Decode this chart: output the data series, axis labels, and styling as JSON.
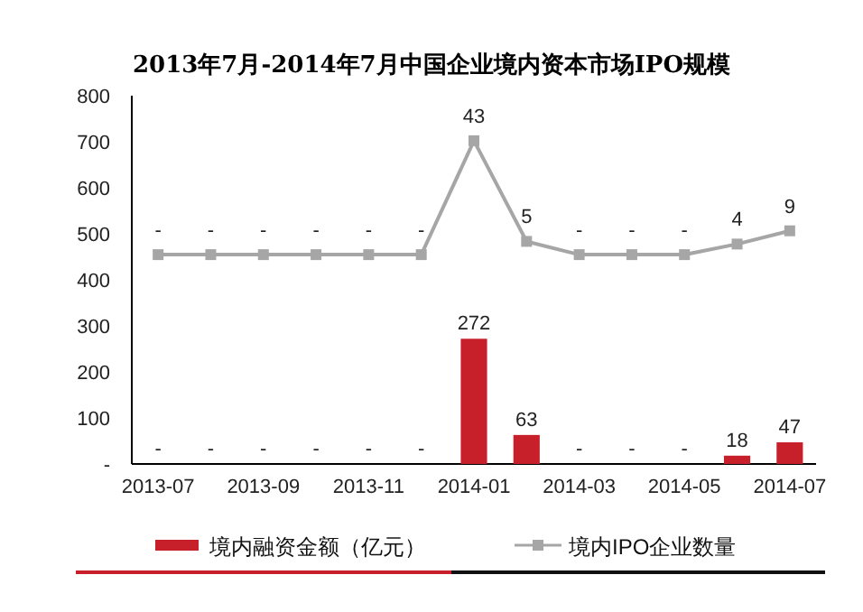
{
  "chart_data": {
    "type": "bar",
    "title": "2013年7月-2014年7月中国企业境内资本市场IPO规模",
    "categories": [
      "2013-07",
      null,
      "2013-09",
      null,
      "2013-11",
      null,
      "2014-01",
      null,
      "2014-03",
      null,
      "2014-05",
      null,
      "2014-07"
    ],
    "series": [
      {
        "name": "境内融资金额（亿元）",
        "color": "#c8202a",
        "values": [
          0,
          0,
          0,
          0,
          0,
          0,
          272,
          63,
          0,
          0,
          0,
          18,
          47
        ],
        "value_labels": [
          "-",
          "-",
          "-",
          "-",
          "-",
          "-",
          "272",
          "63",
          "-",
          "-",
          "-",
          "18",
          "47"
        ]
      },
      {
        "name": "境内IPO企业数量",
        "type": "line",
        "axis": "y2",
        "color": "#a6a6a6",
        "marker": "square",
        "values": [
          0,
          0,
          0,
          0,
          0,
          0,
          43,
          5,
          0,
          0,
          0,
          4,
          9
        ],
        "value_labels": [
          "-",
          "-",
          "-",
          "-",
          "-",
          "-",
          "43",
          "5",
          "-",
          "-",
          "-",
          "4",
          "9"
        ]
      }
    ],
    "ylim": [
      0,
      800
    ],
    "yticks": [
      {
        "value": 0,
        "label": "-"
      },
      100,
      200,
      300,
      400,
      500,
      600,
      700,
      800
    ],
    "y2lim": [
      -79,
      60
    ],
    "legend": "bottom",
    "grid": false
  }
}
